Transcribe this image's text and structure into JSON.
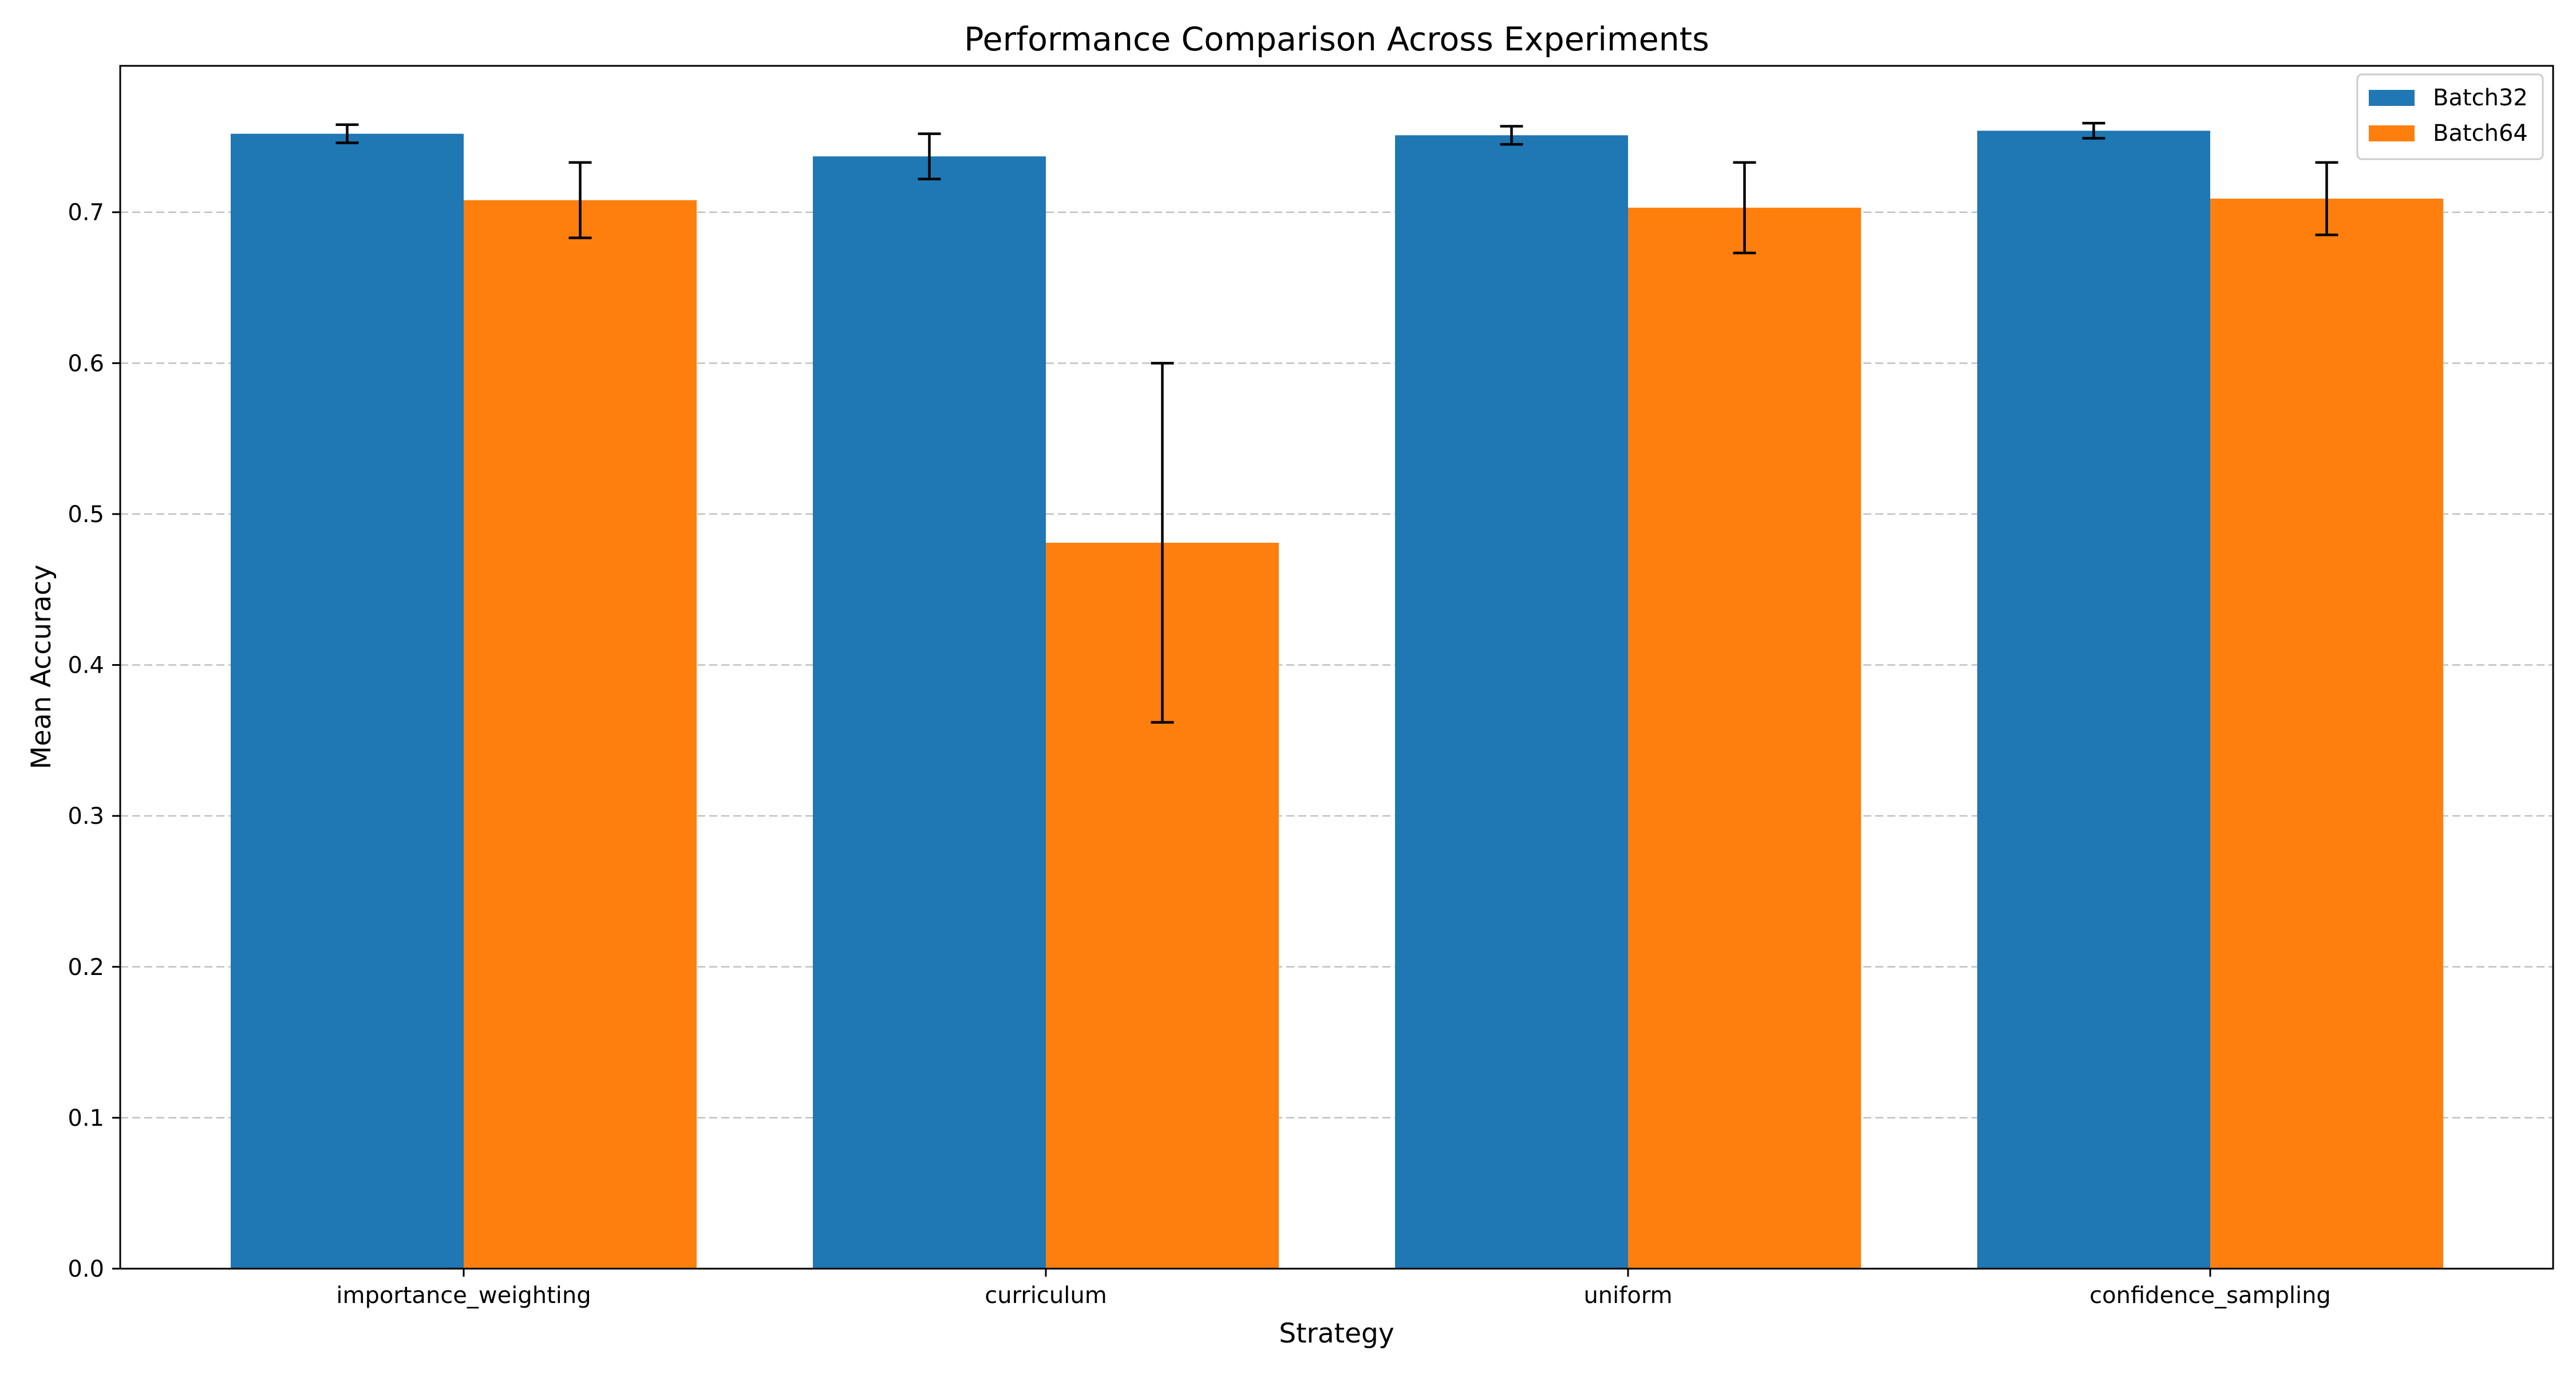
{
  "chart_data": {
    "type": "bar",
    "title": "Performance Comparison Across Experiments",
    "xlabel": "Strategy",
    "ylabel": "Mean Accuracy",
    "categories": [
      "importance_weighting",
      "curriculum",
      "uniform",
      "confidence_sampling"
    ],
    "series": [
      {
        "name": "Batch32",
        "color": "#1f77b4",
        "values": [
          0.752,
          0.737,
          0.751,
          0.754
        ],
        "errors": [
          0.006,
          0.015,
          0.006,
          0.005
        ]
      },
      {
        "name": "Batch64",
        "color": "#ff7f0e",
        "values": [
          0.708,
          0.481,
          0.703,
          0.709
        ],
        "errors": [
          0.025,
          0.119,
          0.03,
          0.024
        ]
      }
    ],
    "ylim": [
      0,
      0.797
    ],
    "yticks": [
      "0.0",
      "0.1",
      "0.2",
      "0.3",
      "0.4",
      "0.5",
      "0.6",
      "0.7"
    ],
    "grid": "y-dashed",
    "legend_position": "top-right"
  }
}
